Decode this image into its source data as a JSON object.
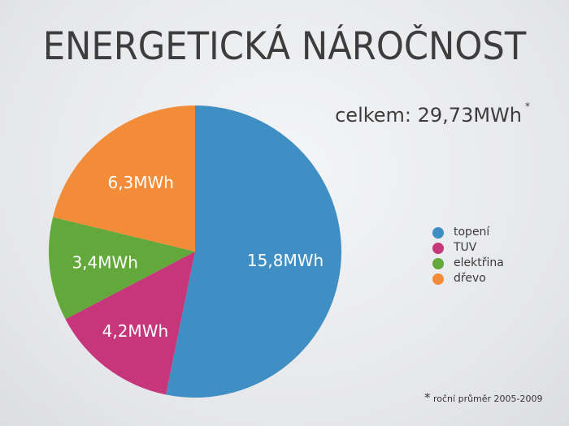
{
  "title": "ENERGETICKÁ NÁROČNOST",
  "total": {
    "label": "celkem: 29,73MWh",
    "marker": "*"
  },
  "footnote": {
    "marker": "*",
    "text": "roční průměr 2005-2009"
  },
  "chart_data": {
    "type": "pie",
    "categories": [
      "topení",
      "TUV",
      "elektřina",
      "dřevo"
    ],
    "values": [
      15.8,
      4.2,
      3.4,
      6.3
    ],
    "labels": [
      "15,8MWh",
      "4,2MWh",
      "3,4MWh",
      "6,3MWh"
    ],
    "colors": [
      "#3f8fc4",
      "#c6367a",
      "#62a83a",
      "#f28c38"
    ],
    "start": "top",
    "direction": "clockwise",
    "legend": "right"
  }
}
